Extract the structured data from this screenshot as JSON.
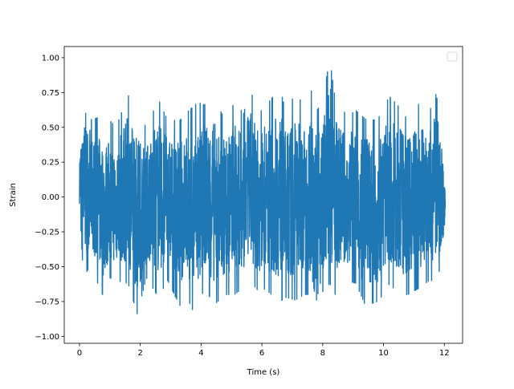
{
  "chart_data": {
    "type": "line",
    "xlabel": "Time (s)",
    "ylabel": "Strain",
    "xlim": [
      -0.5,
      12.6
    ],
    "ylim": [
      -1.05,
      1.08
    ],
    "xticks": [
      0,
      2,
      4,
      6,
      8,
      10,
      12
    ],
    "xtick_labels": [
      "0",
      "2",
      "4",
      "6",
      "8",
      "10",
      "12"
    ],
    "yticks": [
      -1.0,
      -0.75,
      -0.5,
      -0.25,
      0.0,
      0.25,
      0.5,
      0.75,
      1.0
    ],
    "ytick_labels": [
      "−1.00",
      "−0.75",
      "−0.50",
      "−0.25",
      "0.00",
      "0.25",
      "0.50",
      "0.75",
      "1.00"
    ],
    "grid": false,
    "legend": {
      "placement": "top-right",
      "entries": []
    },
    "series": [
      {
        "color": "#1f77b4",
        "description_of_envelope": "",
        "x": [
          0.0,
          0.08,
          0.2,
          0.4,
          0.6,
          0.8,
          1.0,
          1.2,
          1.6,
          1.9,
          2.2,
          2.6,
          2.9,
          3.3,
          3.5,
          3.9,
          4.1,
          4.4,
          4.8,
          5.1,
          5.4,
          5.6,
          5.9,
          6.1,
          6.6,
          6.8,
          7.1,
          7.4,
          7.6,
          7.8,
          8.0,
          8.23,
          8.4,
          8.8,
          9.1,
          9.4,
          9.8,
          10.0,
          10.2,
          10.5,
          10.8,
          11.2,
          11.5,
          11.7,
          11.9,
          12.03
        ],
        "y_max": [
          0.4,
          0.56,
          0.75,
          0.55,
          0.57,
          0.52,
          0.55,
          0.5,
          0.73,
          0.6,
          0.5,
          0.7,
          0.55,
          0.55,
          0.6,
          0.68,
          0.66,
          0.72,
          0.55,
          0.68,
          0.6,
          0.78,
          0.6,
          0.65,
          0.78,
          0.6,
          0.75,
          0.65,
          0.78,
          0.62,
          0.68,
          1.0,
          0.72,
          0.58,
          0.62,
          0.56,
          0.55,
          0.65,
          0.72,
          0.65,
          0.55,
          0.68,
          0.6,
          0.75,
          0.6,
          0.05
        ],
        "y_min": [
          -0.05,
          -0.66,
          -0.55,
          -0.48,
          -0.62,
          -0.72,
          -0.58,
          -0.6,
          -0.62,
          -0.84,
          -0.58,
          -0.72,
          -0.6,
          -0.78,
          -0.7,
          -0.9,
          -0.62,
          -0.78,
          -0.7,
          -0.7,
          -0.65,
          -0.6,
          -0.68,
          -0.66,
          -0.75,
          -0.72,
          -0.74,
          -0.7,
          -0.7,
          -0.93,
          -0.68,
          -0.62,
          -0.7,
          -0.6,
          -0.62,
          -0.78,
          -0.75,
          -0.7,
          -0.62,
          -0.7,
          -0.7,
          -0.65,
          -0.6,
          -0.6,
          -0.5,
          -0.25
        ]
      }
    ]
  }
}
